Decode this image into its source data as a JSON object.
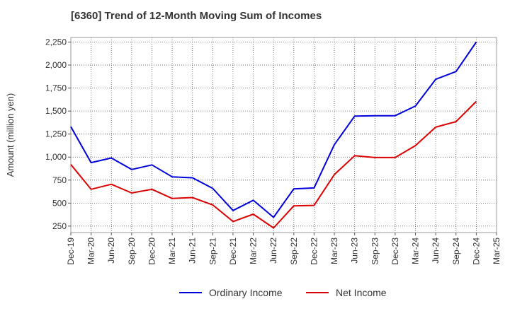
{
  "chart_data": {
    "type": "line",
    "title": "[6360]  Trend of 12-Month Moving Sum of Incomes",
    "xlabel": "",
    "ylabel": "Amount (million yen)",
    "categories": [
      "Dec-19",
      "Mar-20",
      "Jun-20",
      "Sep-20",
      "Dec-20",
      "Mar-21",
      "Jun-21",
      "Sep-21",
      "Dec-21",
      "Mar-22",
      "Jun-22",
      "Sep-22",
      "Dec-22",
      "Mar-23",
      "Jun-23",
      "Sep-23",
      "Dec-23",
      "Mar-24",
      "Jun-24",
      "Sep-24",
      "Dec-24",
      "Mar-25"
    ],
    "ylim": [
      180,
      2300
    ],
    "yticks": [
      250,
      500,
      750,
      1000,
      1250,
      1500,
      1750,
      2000,
      2250
    ],
    "ytick_labels": [
      "250",
      "500",
      "750",
      "1,000",
      "1,250",
      "1,500",
      "1,750",
      "2,000",
      "2,250"
    ],
    "grid": true,
    "legend_position": "bottom-center",
    "series": [
      {
        "name": "Ordinary Income",
        "color": "#0000dd",
        "values": [
          1330,
          940,
          990,
          865,
          915,
          785,
          775,
          660,
          420,
          530,
          345,
          655,
          665,
          1135,
          1445,
          1450,
          1450,
          1555,
          1845,
          1930,
          2250,
          null
        ]
      },
      {
        "name": "Net Income",
        "color": "#dd0000",
        "values": [
          920,
          650,
          705,
          610,
          650,
          550,
          560,
          480,
          300,
          380,
          230,
          470,
          475,
          810,
          1015,
          995,
          995,
          1125,
          1325,
          1385,
          1605,
          null
        ]
      }
    ]
  }
}
